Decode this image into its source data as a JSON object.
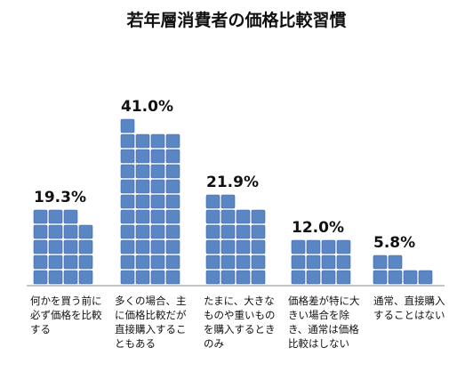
{
  "title": "若年層消費者の価格比較習慣",
  "chart_data": {
    "type": "bar",
    "title": "若年層消費者の価格比較習慣",
    "categories": [
      "何かを買う前に必ず価格を比較する",
      "多くの場合、主に価格比較だが直接購入することもある",
      "たまに、大きなものや重いものを購入するときのみ",
      "価格差が特に大きい場合を除き、通常は価格比較はしない",
      "通常、直接購入することはない"
    ],
    "values": [
      19.3,
      41.0,
      21.9,
      12.0,
      5.8
    ],
    "value_labels": [
      "19.3%",
      "41.0%",
      "21.9%",
      "12.0%",
      "5.8%"
    ],
    "bar_color": "#5b86c4",
    "axis_color": "#888888",
    "grid": false,
    "legend": "none"
  }
}
